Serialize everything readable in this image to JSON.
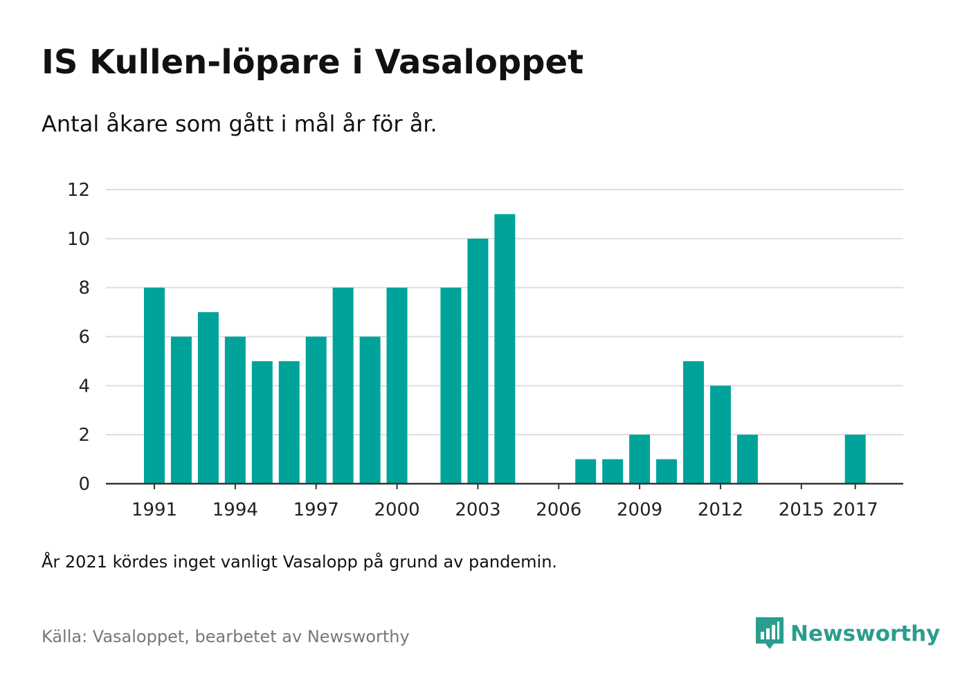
{
  "title": "IS Kullen-löpare i Vasaloppet",
  "subtitle": "Antal åkare som gått i mål år för år.",
  "note": "År 2021 kördes inget vanligt Vasalopp på grund av pandemin.",
  "source": "Källa: Vasaloppet, bearbetet av Newsworthy",
  "brand": {
    "name": "Newsworthy",
    "icon": "newsworthy-logo-icon"
  },
  "colors": {
    "bar": "#00a39a",
    "grid": "#dddddd",
    "axis": "#333333",
    "brand": "#2a9d8f"
  },
  "chart_data": {
    "type": "bar",
    "categories": [
      "1991",
      "1992",
      "1993",
      "1994",
      "1995",
      "1996",
      "1997",
      "1998",
      "1999",
      "2000",
      "2001",
      "2002",
      "2003",
      "2004",
      "2005",
      "2006",
      "2007",
      "2008",
      "2009",
      "2010",
      "2011",
      "2012",
      "2013",
      "2014",
      "2015",
      "2016",
      "2017"
    ],
    "values": [
      8,
      6,
      7,
      6,
      5,
      5,
      6,
      8,
      6,
      8,
      0,
      8,
      10,
      11,
      0,
      0,
      1,
      1,
      2,
      1,
      5,
      4,
      2,
      0,
      0,
      0,
      2
    ],
    "x_tick_labels": [
      "1991",
      "1994",
      "1997",
      "2000",
      "2003",
      "2006",
      "2009",
      "2012",
      "2015",
      "2017"
    ],
    "y_ticks": [
      0,
      2,
      4,
      6,
      8,
      10,
      12
    ],
    "ylim": [
      0,
      12
    ],
    "grid": true,
    "legend": "none"
  }
}
